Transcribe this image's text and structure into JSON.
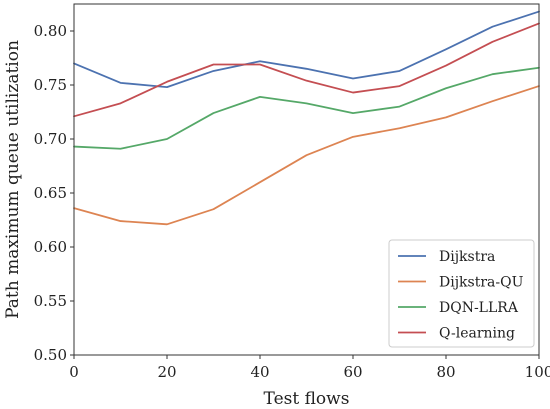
{
  "chart_data": {
    "type": "line",
    "title": "",
    "xlabel": "Test flows",
    "ylabel": "Path maximum queue utilization",
    "xlim": [
      0,
      100
    ],
    "ylim": [
      0.5,
      0.825
    ],
    "xticks": [
      0,
      20,
      40,
      60,
      80,
      100
    ],
    "xtick_labels": [
      "0",
      "20",
      "40",
      "60",
      "80",
      "100"
    ],
    "yticks": [
      0.5,
      0.55,
      0.6,
      0.65,
      0.7,
      0.75,
      0.8
    ],
    "ytick_labels": [
      "0.50",
      "0.55",
      "0.60",
      "0.65",
      "0.70",
      "0.75",
      "0.80"
    ],
    "grid": false,
    "legend_position": "lower-right",
    "x": [
      0,
      10,
      20,
      30,
      40,
      50,
      60,
      70,
      80,
      90,
      100
    ],
    "series": [
      {
        "name": "Dijkstra",
        "color": "#4c72b0",
        "values": [
          0.77,
          0.752,
          0.748,
          0.763,
          0.772,
          0.765,
          0.756,
          0.763,
          0.783,
          0.804,
          0.818
        ]
      },
      {
        "name": "Dijkstra-QU",
        "color": "#dd8452",
        "values": [
          0.636,
          0.624,
          0.621,
          0.635,
          0.66,
          0.685,
          0.702,
          0.71,
          0.72,
          0.735,
          0.749
        ]
      },
      {
        "name": "DQN-LLRA",
        "color": "#55a868",
        "values": [
          0.693,
          0.691,
          0.7,
          0.724,
          0.739,
          0.733,
          0.724,
          0.73,
          0.747,
          0.76,
          0.766
        ]
      },
      {
        "name": "Q-learning",
        "color": "#c44e52",
        "values": [
          0.721,
          0.733,
          0.753,
          0.769,
          0.769,
          0.754,
          0.743,
          0.749,
          0.768,
          0.79,
          0.807
        ]
      }
    ]
  }
}
